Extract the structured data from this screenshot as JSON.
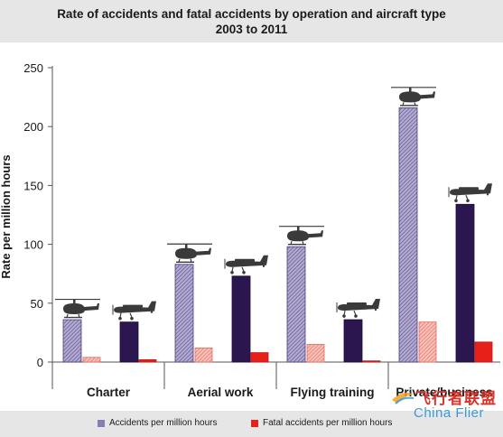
{
  "header": {
    "title_line1": "Rate of accidents and fatal accidents by operation and aircraft type",
    "title_line2": "2003 to 2011"
  },
  "legend": {
    "accidents_label": "Accidents per million hours",
    "fatal_label": "Fatal accidents per million hours"
  },
  "watermark": {
    "cn": "飞行者联盟",
    "en": "China Flier"
  },
  "colors": {
    "heli_accidents": "#8a7fb0",
    "plane_accidents": "#2b1650",
    "heli_fatal": "#f4a8a0",
    "plane_fatal": "#e8201a",
    "icon": "#3a3a3a"
  },
  "chart_data": {
    "type": "bar",
    "ylabel": "Rate per million hours",
    "xlabel": "",
    "ylim": [
      0,
      250
    ],
    "yticks": [
      "0",
      "50",
      "100",
      "150",
      "200",
      "250"
    ],
    "categories": [
      "Charter",
      "Aerial work",
      "Flying training",
      "Private/business"
    ],
    "aircraft_types": [
      "helicopter-icon",
      "aeroplane-icon"
    ],
    "groups": [
      {
        "category": "Charter",
        "helicopter": {
          "accidents": 36,
          "fatal": 4
        },
        "aeroplane": {
          "accidents": 34,
          "fatal": 2
        }
      },
      {
        "category": "Aerial work",
        "helicopter": {
          "accidents": 83,
          "fatal": 12
        },
        "aeroplane": {
          "accidents": 73,
          "fatal": 8
        }
      },
      {
        "category": "Flying training",
        "helicopter": {
          "accidents": 98,
          "fatal": 15
        },
        "aeroplane": {
          "accidents": 36,
          "fatal": 1
        }
      },
      {
        "category": "Private/business",
        "helicopter": {
          "accidents": 216,
          "fatal": 34
        },
        "aeroplane": {
          "accidents": 134,
          "fatal": 17
        }
      }
    ],
    "grid": false,
    "legend_position": "bottom"
  }
}
